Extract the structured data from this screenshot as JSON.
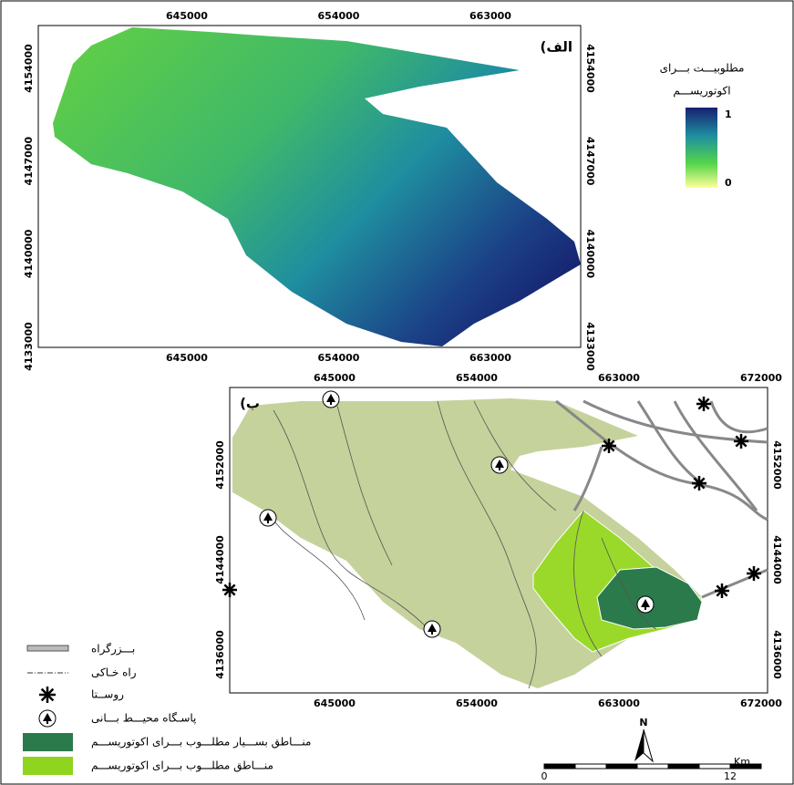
{
  "panel_a": {
    "label": "(الف",
    "x_ticks": [
      645000,
      654000,
      663000
    ],
    "y_ticks": [
      4154000,
      4147000,
      4140000,
      4133000
    ],
    "legend": {
      "title_lines": [
        "مطلوبیـــت بـــرای",
        "اکوتوریســـم"
      ],
      "high": 1,
      "low": 0
    }
  },
  "panel_b": {
    "label": "(ب",
    "x_ticks": [
      645000,
      654000,
      663000,
      672000
    ],
    "y_ticks": [
      4152000,
      4144000,
      4136000
    ]
  },
  "legend": {
    "items": [
      "بـــزرگراه",
      "راه خـاکی",
      "روســتا",
      "پاسـگاه محیـــط بـــانی",
      "منـــاطق بســـیار مطلـــوب بـــرای اکوتوریســـم",
      "منـــاطق مطلـــوب بـــرای اکوتوریســـم"
    ]
  },
  "north": "N",
  "scale_bar": {
    "unit": "Km",
    "ticks": [
      0,
      12
    ]
  }
}
